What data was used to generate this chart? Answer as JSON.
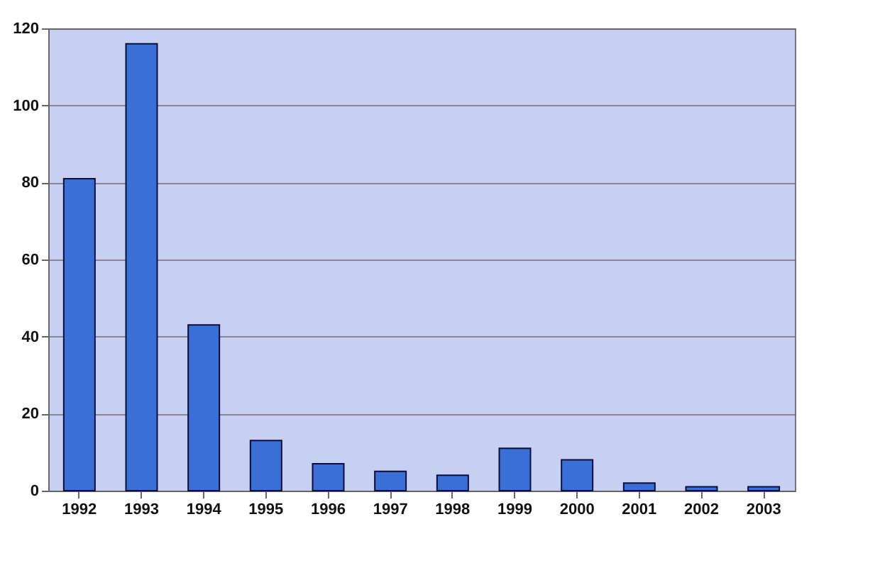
{
  "chart_data": {
    "type": "bar",
    "categories": [
      "1992",
      "1993",
      "1994",
      "1995",
      "1996",
      "1997",
      "1998",
      "1999",
      "2000",
      "2001",
      "2002",
      "2003"
    ],
    "series": [
      {
        "color": "#3a6fd8",
        "values": [
          81,
          116,
          43,
          13,
          7,
          5,
          4,
          11,
          8,
          2,
          1,
          1
        ]
      }
    ],
    "ylim": [
      0,
      120
    ],
    "yticks": [
      0,
      20,
      40,
      60,
      80,
      100,
      120
    ],
    "grid": "y"
  }
}
